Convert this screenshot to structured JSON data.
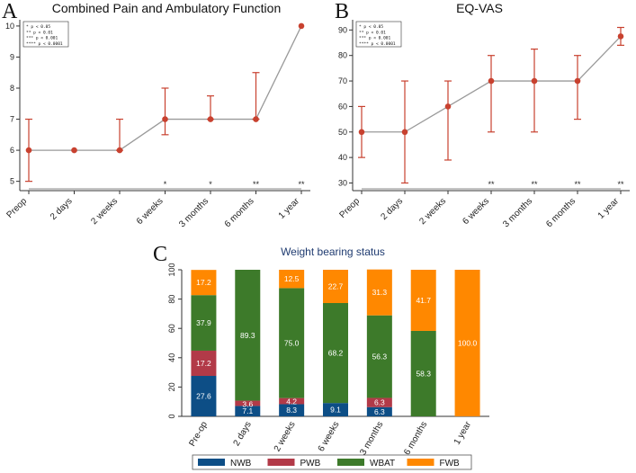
{
  "panels": {
    "A": {
      "letter": "A",
      "chart_data": {
        "type": "line",
        "title": "Combined Pain and Ambulatory Function",
        "categories": [
          "Preop",
          "2 days",
          "2 weeks",
          "6 weeks",
          "3 months",
          "6 months",
          "1 year"
        ],
        "values": [
          6,
          6,
          6,
          7,
          7,
          7,
          10
        ],
        "error_low": [
          5,
          6,
          6,
          6.5,
          7,
          7,
          10
        ],
        "error_high": [
          7,
          6,
          7,
          8,
          7.75,
          8.5,
          10
        ],
        "significance": [
          "",
          "",
          "",
          "*",
          "*",
          "**",
          "**"
        ],
        "ylim": [
          4.7,
          10.2
        ],
        "yticks": [
          5,
          6,
          7,
          8,
          9,
          10
        ],
        "xlabel": "",
        "ylabel": "",
        "legend": [
          "*      p < 0.05",
          "**     p < 0.01",
          "***    p < 0.001",
          "****  p < 0.0001"
        ]
      }
    },
    "B": {
      "letter": "B",
      "chart_data": {
        "type": "line",
        "title": "EQ-VAS",
        "categories": [
          "Preop",
          "2 days",
          "2 weeks",
          "6 weeks",
          "3 months",
          "6 months",
          "1 year"
        ],
        "values": [
          50,
          50,
          60,
          70,
          70,
          70,
          87.5
        ],
        "error_low": [
          40,
          30,
          39,
          50,
          50,
          55,
          84
        ],
        "error_high": [
          60,
          70,
          70,
          80,
          82.5,
          80,
          91
        ],
        "significance": [
          "",
          "",
          "",
          "**",
          "**",
          "**",
          "**"
        ],
        "ylim": [
          27,
          94
        ],
        "yticks": [
          30,
          40,
          50,
          60,
          70,
          80,
          90
        ],
        "xlabel": "",
        "ylabel": "",
        "legend": [
          "*      p < 0.05",
          "**     p < 0.01",
          "***    p < 0.001",
          "****  p < 0.0001"
        ]
      }
    },
    "C": {
      "letter": "C",
      "chart_data": {
        "type": "bar",
        "stacked": true,
        "title": "Weight bearing status",
        "categories": [
          "Pre-op",
          "2 days",
          "2 weeks",
          "6 weeks",
          "3 months",
          "6 months",
          "1 year"
        ],
        "ylim": [
          0,
          100
        ],
        "yticks": [
          0,
          20,
          40,
          60,
          80,
          100
        ],
        "legend_position": "bottom",
        "series": [
          {
            "name": "NWB",
            "color": "#0d4e86",
            "values": [
              27.6,
              7.1,
              8.3,
              9.1,
              6.3,
              0,
              0
            ],
            "labels": [
              "27.6",
              "7.1",
              "8.3",
              "9.1",
              "6.3",
              "",
              ""
            ]
          },
          {
            "name": "PWB",
            "color": "#b23a48",
            "values": [
              17.2,
              3.6,
              4.2,
              0,
              6.3,
              0,
              0
            ],
            "labels": [
              "17.2",
              "3.6",
              "4.2",
              "",
              "6.3",
              "",
              ""
            ]
          },
          {
            "name": "WBAT",
            "color": "#3d7a2a",
            "values": [
              37.9,
              89.3,
              75.0,
              68.2,
              56.3,
              58.3,
              0
            ],
            "labels": [
              "37.9",
              "89.3",
              "75.0",
              "68.2",
              "56.3",
              "58.3",
              ""
            ]
          },
          {
            "name": "FWB",
            "color": "#ff8800",
            "values": [
              17.2,
              0,
              12.5,
              22.7,
              31.3,
              41.7,
              100.0
            ],
            "labels": [
              "17.2",
              "",
              "12.5",
              "22.7",
              "31.3",
              "41.7",
              "100.0"
            ]
          }
        ]
      }
    }
  }
}
